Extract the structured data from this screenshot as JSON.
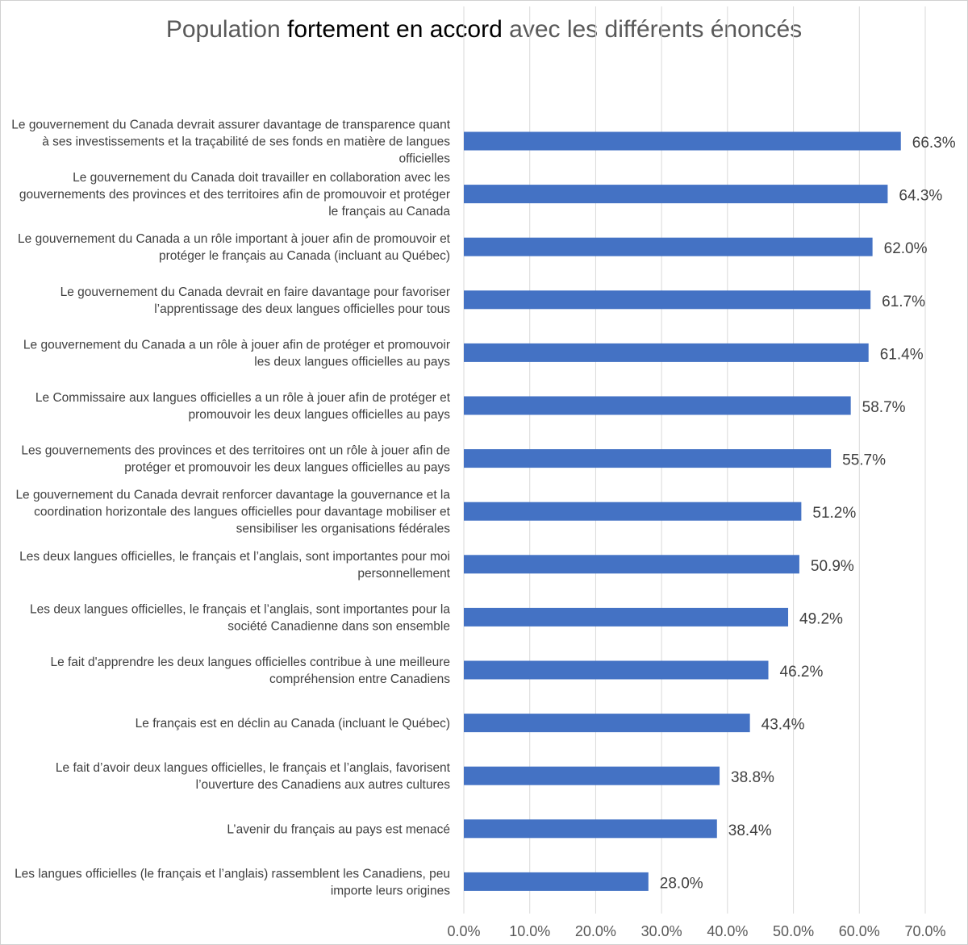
{
  "chart_data": {
    "type": "bar",
    "orientation": "horizontal",
    "title": "Population fortement en accord avec les différents énoncés",
    "title_parts": {
      "before": "Population ",
      "emphasis": "fortement en accord",
      "after": " avec les différents énoncés"
    },
    "xlabel": "",
    "ylabel": "",
    "xlim": [
      0,
      70
    ],
    "x_ticks": [
      "0.0%",
      "10.0%",
      "20.0%",
      "30.0%",
      "40.0%",
      "50.0%",
      "60.0%",
      "70.0%"
    ],
    "grid": true,
    "bar_color": "#4472C4",
    "grid_color": "#d9d9d9",
    "categories": [
      [
        "Le gouvernement du Canada devrait assurer davantage de transparence quant",
        "à ses investissements et la traçabilité de ses fonds en matière de langues",
        "officielles"
      ],
      [
        "Le gouvernement du Canada doit travailler en collaboration avec les",
        "gouvernements des provinces et des territoires afin de promouvoir et protéger",
        "le français au Canada"
      ],
      [
        "Le gouvernement du Canada a un rôle important à jouer afin de promouvoir et",
        "protéger le français au Canada (incluant au Québec)"
      ],
      [
        "Le gouvernement du Canada devrait en faire davantage pour favoriser",
        "l’apprentissage des deux langues officielles pour tous"
      ],
      [
        "Le gouvernement du Canada a un rôle à jouer afin de protéger et promouvoir",
        "les deux langues officielles au pays"
      ],
      [
        "Le Commissaire aux langues officielles a un rôle à jouer afin de protéger et",
        "promouvoir les deux langues officielles au pays"
      ],
      [
        "Les gouvernements des provinces et des territoires ont un rôle à jouer afin de",
        "protéger et promouvoir les deux langues officielles au pays"
      ],
      [
        "Le gouvernement du Canada devrait renforcer davantage la gouvernance et la",
        "coordination horizontale des langues officielles pour davantage mobiliser et",
        "sensibiliser les organisations fédérales"
      ],
      [
        "Les deux langues officielles, le français et l’anglais, sont importantes pour moi",
        "personnellement"
      ],
      [
        "Les deux langues officielles, le français et l’anglais, sont importantes pour la",
        "société Canadienne dans son ensemble"
      ],
      [
        "Le fait d'apprendre les deux langues officielles contribue à une meilleure",
        "compréhension entre Canadiens"
      ],
      [
        "Le français est en déclin au Canada (incluant le Québec)"
      ],
      [
        "Le fait d’avoir deux langues officielles, le français et l’anglais, favorisent",
        "l’ouverture des Canadiens aux autres cultures"
      ],
      [
        "L’avenir du français au pays est menacé"
      ],
      [
        "Les langues officielles (le français et l’anglais) rassemblent les Canadiens, peu",
        "importe leurs origines"
      ]
    ],
    "values": [
      66.3,
      64.3,
      62.0,
      61.7,
      61.4,
      58.7,
      55.7,
      51.2,
      50.9,
      49.2,
      46.2,
      43.4,
      38.8,
      38.4,
      28.0
    ],
    "data_labels": [
      "66.3%",
      "64.3%",
      "62.0%",
      "61.7%",
      "61.4%",
      "58.7%",
      "55.7%",
      "51.2%",
      "50.9%",
      "49.2%",
      "46.2%",
      "43.4%",
      "38.8%",
      "38.4%",
      "28.0%"
    ]
  }
}
